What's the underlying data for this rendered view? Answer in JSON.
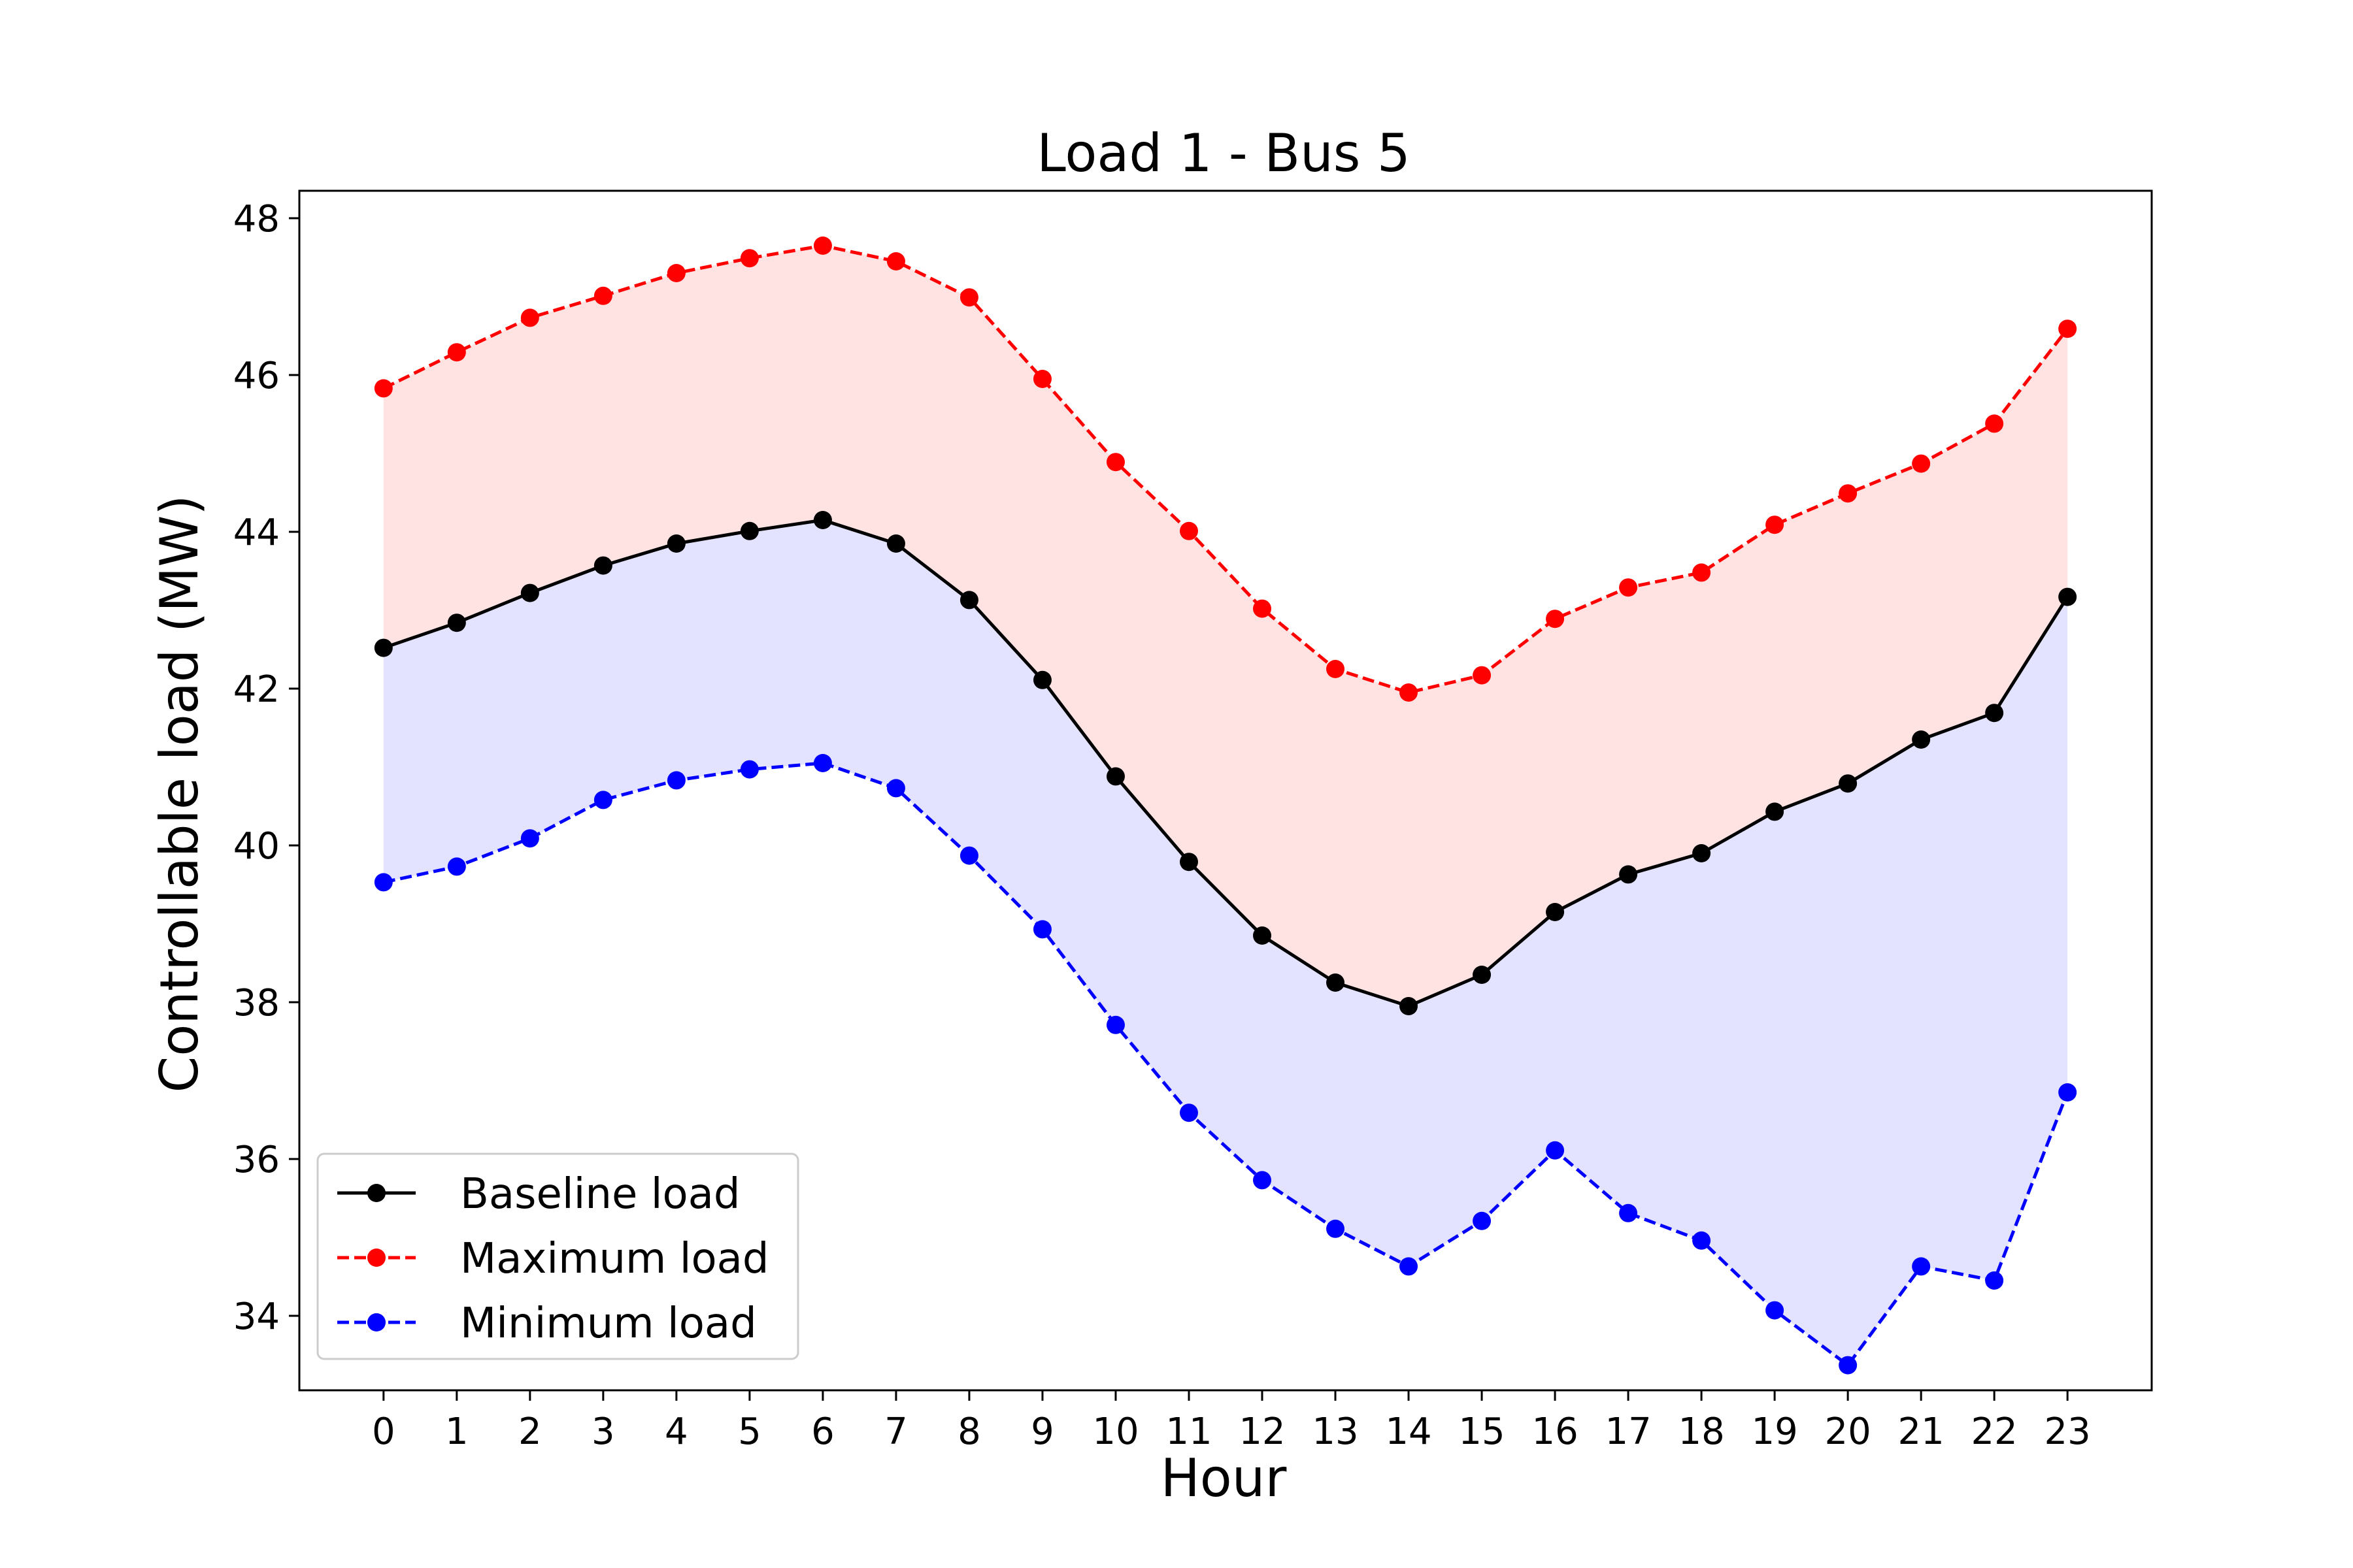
{
  "chart_data": {
    "type": "line",
    "title": "Load 1 - Bus 5",
    "xlabel": "Hour",
    "ylabel": "Controllable load (MW)",
    "x": [
      0,
      1,
      2,
      3,
      4,
      5,
      6,
      7,
      8,
      9,
      10,
      11,
      12,
      13,
      14,
      15,
      16,
      17,
      18,
      19,
      20,
      21,
      22,
      23
    ],
    "xlim": [
      -1.15,
      24.15
    ],
    "ylim": [
      33.05,
      48.35
    ],
    "yticks": [
      34,
      36,
      38,
      40,
      42,
      44,
      46,
      48
    ],
    "grid": false,
    "legend_position": "lower-left",
    "series": [
      {
        "name": "Baseline load",
        "color": "#000000",
        "linestyle": "solid",
        "values": [
          42.52,
          42.84,
          43.22,
          43.57,
          43.85,
          44.01,
          44.15,
          43.85,
          43.13,
          42.11,
          40.88,
          39.79,
          38.85,
          38.25,
          37.95,
          38.35,
          39.15,
          39.63,
          39.9,
          40.43,
          40.79,
          41.35,
          41.69,
          43.17
        ]
      },
      {
        "name": "Maximum load",
        "color": "#ff0000",
        "linestyle": "dashed",
        "values": [
          45.83,
          46.29,
          46.73,
          47.01,
          47.3,
          47.49,
          47.65,
          47.45,
          46.99,
          45.95,
          44.89,
          44.01,
          43.02,
          42.25,
          41.95,
          42.17,
          42.89,
          43.29,
          43.48,
          44.09,
          44.49,
          44.87,
          45.38,
          46.59
        ]
      },
      {
        "name": "Minimum load",
        "color": "#0000ff",
        "linestyle": "dashed",
        "values": [
          39.53,
          39.73,
          40.09,
          40.58,
          40.83,
          40.97,
          41.05,
          40.73,
          39.87,
          38.93,
          37.71,
          36.59,
          35.73,
          35.11,
          34.63,
          35.21,
          36.11,
          35.31,
          34.96,
          34.07,
          33.37,
          34.63,
          34.45,
          36.85
        ]
      }
    ],
    "fills": [
      {
        "between": [
          "Baseline load",
          "Maximum load"
        ],
        "color": "#ff0000",
        "alpha": 0.11
      },
      {
        "between": [
          "Minimum load",
          "Baseline load"
        ],
        "color": "#0000ff",
        "alpha": 0.11
      }
    ]
  }
}
